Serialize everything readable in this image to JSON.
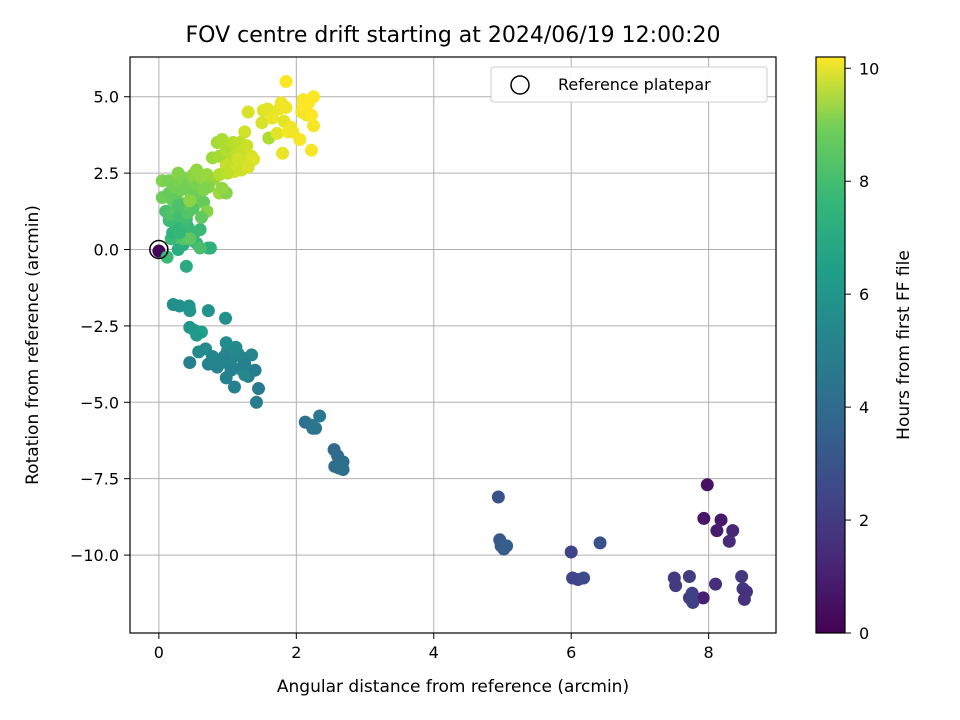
{
  "chart_data": {
    "type": "scatter",
    "title": "FOV centre drift starting at 2024/06/19 12:00:20",
    "xlabel": "Angular distance from reference (arcmin)",
    "ylabel": "Rotation from reference (arcmin)",
    "xlim": [
      -0.42,
      8.98
    ],
    "ylim": [
      -12.55,
      6.3
    ],
    "xticks": [
      0,
      2,
      4,
      6,
      8
    ],
    "xtick_labels": [
      "0",
      "2",
      "4",
      "6",
      "8"
    ],
    "yticks": [
      5.0,
      2.5,
      0.0,
      -2.5,
      -5.0,
      -7.5,
      -10.0
    ],
    "ytick_labels": [
      "5.0",
      "2.5",
      "0.0",
      "−2.5",
      "−5.0",
      "−7.5",
      "−10.0"
    ],
    "grid": true,
    "legend": {
      "label": "Reference platepar",
      "placement": "top-right"
    },
    "reference_point": {
      "x": 0.0,
      "y": 0.0
    },
    "colorbar": {
      "label": "Hours from first FF file",
      "range": [
        0,
        10.2
      ],
      "ticks": [
        0,
        2,
        4,
        6,
        8,
        10
      ],
      "tick_labels": [
        "0",
        "2",
        "4",
        "6",
        "8",
        "10"
      ],
      "colormap": "viridis"
    },
    "series": [
      {
        "points": [
          {
            "x": 0.0,
            "y": -0.05,
            "h": 0.1
          },
          {
            "x": 0.12,
            "y": -0.25,
            "h": 6.9
          },
          {
            "x": 7.98,
            "y": -7.7,
            "h": 0.5
          },
          {
            "x": 7.93,
            "y": -8.8,
            "h": 0.6
          },
          {
            "x": 8.18,
            "y": -8.85,
            "h": 0.7
          },
          {
            "x": 8.12,
            "y": -9.2,
            "h": 0.8
          },
          {
            "x": 8.35,
            "y": -9.2,
            "h": 1.1
          },
          {
            "x": 8.3,
            "y": -9.55,
            "h": 1.2
          },
          {
            "x": 7.92,
            "y": -11.4,
            "h": 0.9
          },
          {
            "x": 8.1,
            "y": -10.95,
            "h": 1.4
          },
          {
            "x": 8.48,
            "y": -10.7,
            "h": 1.7
          },
          {
            "x": 8.5,
            "y": -11.1,
            "h": 1.6
          },
          {
            "x": 8.55,
            "y": -11.2,
            "h": 1.5
          },
          {
            "x": 8.52,
            "y": -11.45,
            "h": 1.5
          },
          {
            "x": 7.5,
            "y": -10.75,
            "h": 1.8
          },
          {
            "x": 7.52,
            "y": -11.0,
            "h": 1.8
          },
          {
            "x": 7.72,
            "y": -10.7,
            "h": 1.9
          },
          {
            "x": 7.72,
            "y": -11.4,
            "h": 1.9
          },
          {
            "x": 7.76,
            "y": -11.25,
            "h": 2.0
          },
          {
            "x": 7.77,
            "y": -11.55,
            "h": 2.0
          },
          {
            "x": 6.0,
            "y": -9.9,
            "h": 2.1
          },
          {
            "x": 6.02,
            "y": -10.75,
            "h": 2.2
          },
          {
            "x": 6.1,
            "y": -10.8,
            "h": 2.2
          },
          {
            "x": 6.18,
            "y": -10.75,
            "h": 2.3
          },
          {
            "x": 6.42,
            "y": -9.6,
            "h": 2.6
          },
          {
            "x": 4.94,
            "y": -8.1,
            "h": 2.6
          },
          {
            "x": 4.96,
            "y": -9.5,
            "h": 2.8
          },
          {
            "x": 4.98,
            "y": -9.7,
            "h": 2.9
          },
          {
            "x": 5.02,
            "y": -9.8,
            "h": 3.0
          },
          {
            "x": 5.06,
            "y": -9.7,
            "h": 3.0
          },
          {
            "x": 2.55,
            "y": -6.55,
            "h": 3.4
          },
          {
            "x": 2.6,
            "y": -6.75,
            "h": 3.5
          },
          {
            "x": 2.68,
            "y": -6.95,
            "h": 3.6
          },
          {
            "x": 2.56,
            "y": -7.1,
            "h": 3.6
          },
          {
            "x": 2.62,
            "y": -7.15,
            "h": 3.7
          },
          {
            "x": 2.68,
            "y": -7.2,
            "h": 3.7
          },
          {
            "x": 2.13,
            "y": -5.65,
            "h": 3.8
          },
          {
            "x": 2.22,
            "y": -5.75,
            "h": 3.9
          },
          {
            "x": 2.28,
            "y": -5.85,
            "h": 4.0
          },
          {
            "x": 2.34,
            "y": -5.45,
            "h": 4.1
          },
          {
            "x": 2.24,
            "y": -5.85,
            "h": 3.95
          },
          {
            "x": 1.45,
            "y": -4.55,
            "h": 4.2
          },
          {
            "x": 1.42,
            "y": -5.0,
            "h": 4.3
          },
          {
            "x": 1.3,
            "y": -4.15,
            "h": 4.35
          },
          {
            "x": 1.1,
            "y": -4.5,
            "h": 4.45
          },
          {
            "x": 1.18,
            "y": -3.9,
            "h": 4.5
          },
          {
            "x": 0.98,
            "y": -4.2,
            "h": 4.5
          },
          {
            "x": 0.85,
            "y": -3.85,
            "h": 4.55
          },
          {
            "x": 1.05,
            "y": -3.6,
            "h": 4.6
          },
          {
            "x": 0.92,
            "y": -3.7,
            "h": 4.6
          },
          {
            "x": 1.22,
            "y": -3.55,
            "h": 4.7
          },
          {
            "x": 1.35,
            "y": -3.45,
            "h": 4.75
          },
          {
            "x": 1.15,
            "y": -3.4,
            "h": 4.75
          },
          {
            "x": 1.25,
            "y": -4.1,
            "h": 4.8
          },
          {
            "x": 1.0,
            "y": -3.3,
            "h": 4.85
          },
          {
            "x": 1.12,
            "y": -3.2,
            "h": 4.9
          },
          {
            "x": 0.98,
            "y": -3.05,
            "h": 4.95
          },
          {
            "x": 1.05,
            "y": -3.95,
            "h": 4.5
          },
          {
            "x": 0.72,
            "y": -3.75,
            "h": 4.55
          },
          {
            "x": 0.68,
            "y": -3.25,
            "h": 4.85
          },
          {
            "x": 0.58,
            "y": -3.35,
            "h": 4.9
          },
          {
            "x": 0.78,
            "y": -3.5,
            "h": 4.7
          },
          {
            "x": 0.85,
            "y": -3.65,
            "h": 4.65
          },
          {
            "x": 0.95,
            "y": -3.5,
            "h": 4.6
          },
          {
            "x": 1.4,
            "y": -3.95,
            "h": 4.4
          },
          {
            "x": 1.25,
            "y": -3.75,
            "h": 4.45
          },
          {
            "x": 0.45,
            "y": -3.7,
            "h": 4.4
          },
          {
            "x": 0.45,
            "y": -2.55,
            "h": 5.3
          },
          {
            "x": 0.52,
            "y": -2.65,
            "h": 5.4
          },
          {
            "x": 0.62,
            "y": -2.7,
            "h": 5.7
          },
          {
            "x": 0.55,
            "y": -2.8,
            "h": 5.5
          },
          {
            "x": 0.72,
            "y": -2.0,
            "h": 5.2
          },
          {
            "x": 0.97,
            "y": -2.25,
            "h": 5.1
          },
          {
            "x": 0.21,
            "y": -1.8,
            "h": 5.0
          },
          {
            "x": 0.3,
            "y": -1.85,
            "h": 5.1
          },
          {
            "x": 0.44,
            "y": -1.85,
            "h": 5.2
          },
          {
            "x": 0.45,
            "y": -2.0,
            "h": 5.3
          },
          {
            "x": 0.75,
            "y": 0.05,
            "h": 6.6
          },
          {
            "x": 0.72,
            "y": 0.05,
            "h": 6.5
          },
          {
            "x": 0.4,
            "y": -0.55,
            "h": 6.2
          },
          {
            "x": 0.28,
            "y": 0.0,
            "h": 6.3
          },
          {
            "x": 0.35,
            "y": 0.15,
            "h": 6.4
          },
          {
            "x": 0.48,
            "y": 0.3,
            "h": 6.7
          },
          {
            "x": 0.55,
            "y": 0.2,
            "h": 6.8
          },
          {
            "x": 0.6,
            "y": 0.05,
            "h": 7.2
          },
          {
            "x": 0.18,
            "y": 0.35,
            "h": 6.9
          },
          {
            "x": 0.2,
            "y": 0.55,
            "h": 6.6
          },
          {
            "x": 0.25,
            "y": 0.75,
            "h": 6.7
          },
          {
            "x": 0.15,
            "y": 0.95,
            "h": 7.0
          },
          {
            "x": 0.33,
            "y": 0.9,
            "h": 6.8
          },
          {
            "x": 0.42,
            "y": 0.75,
            "h": 6.9
          },
          {
            "x": 0.4,
            "y": 1.0,
            "h": 7.0
          },
          {
            "x": 0.52,
            "y": 0.55,
            "h": 6.9
          },
          {
            "x": 0.6,
            "y": 0.65,
            "h": 6.9
          },
          {
            "x": 0.35,
            "y": 0.35,
            "h": 7.4
          },
          {
            "x": 0.45,
            "y": 0.35,
            "h": 7.6
          },
          {
            "x": 0.3,
            "y": 0.55,
            "h": 6.75
          },
          {
            "x": 0.1,
            "y": 1.25,
            "h": 7.2
          },
          {
            "x": 0.18,
            "y": 1.15,
            "h": 7.3
          },
          {
            "x": 0.25,
            "y": 1.3,
            "h": 7.5
          },
          {
            "x": 0.3,
            "y": 1.1,
            "h": 7.1
          },
          {
            "x": 0.42,
            "y": 1.2,
            "h": 7.4
          },
          {
            "x": 0.5,
            "y": 1.35,
            "h": 7.5
          },
          {
            "x": 0.38,
            "y": 1.5,
            "h": 7.6
          },
          {
            "x": 0.2,
            "y": 1.6,
            "h": 7.8
          },
          {
            "x": 0.05,
            "y": 1.7,
            "h": 7.9
          },
          {
            "x": 0.15,
            "y": 1.85,
            "h": 7.8
          },
          {
            "x": 0.25,
            "y": 1.75,
            "h": 7.7
          },
          {
            "x": 0.32,
            "y": 1.95,
            "h": 8.0
          },
          {
            "x": 0.45,
            "y": 1.9,
            "h": 8.0
          },
          {
            "x": 0.55,
            "y": 1.75,
            "h": 7.9
          },
          {
            "x": 0.65,
            "y": 1.55,
            "h": 7.8
          },
          {
            "x": 0.7,
            "y": 1.25,
            "h": 8.3
          },
          {
            "x": 0.62,
            "y": 1.05,
            "h": 7.7
          },
          {
            "x": 0.28,
            "y": 1.45,
            "h": 7.3
          },
          {
            "x": 0.05,
            "y": 2.25,
            "h": 8.2
          },
          {
            "x": 0.15,
            "y": 2.25,
            "h": 8.1
          },
          {
            "x": 0.22,
            "y": 2.05,
            "h": 8.0
          },
          {
            "x": 0.28,
            "y": 2.25,
            "h": 8.1
          },
          {
            "x": 0.28,
            "y": 2.5,
            "h": 8.3
          },
          {
            "x": 0.35,
            "y": 2.35,
            "h": 8.2
          },
          {
            "x": 0.42,
            "y": 2.15,
            "h": 8.0
          },
          {
            "x": 0.5,
            "y": 2.3,
            "h": 8.2
          },
          {
            "x": 0.5,
            "y": 2.45,
            "h": 8.4
          },
          {
            "x": 0.58,
            "y": 2.1,
            "h": 8.1
          },
          {
            "x": 0.62,
            "y": 2.35,
            "h": 8.5
          },
          {
            "x": 0.7,
            "y": 2.45,
            "h": 8.6
          },
          {
            "x": 0.8,
            "y": 2.3,
            "h": 8.6
          },
          {
            "x": 0.72,
            "y": 2.05,
            "h": 8.3
          },
          {
            "x": 0.55,
            "y": 2.6,
            "h": 8.5
          },
          {
            "x": 0.45,
            "y": 1.6,
            "h": 8.4
          },
          {
            "x": 0.88,
            "y": 1.85,
            "h": 8.7
          },
          {
            "x": 0.98,
            "y": 1.85,
            "h": 8.3
          },
          {
            "x": 0.92,
            "y": 2.0,
            "h": 8.5
          },
          {
            "x": 0.65,
            "y": 1.95,
            "h": 8.2
          },
          {
            "x": 0.78,
            "y": 3.0,
            "h": 8.7
          },
          {
            "x": 0.88,
            "y": 3.05,
            "h": 8.8
          },
          {
            "x": 0.85,
            "y": 3.5,
            "h": 8.8
          },
          {
            "x": 0.92,
            "y": 3.6,
            "h": 8.9
          },
          {
            "x": 0.98,
            "y": 3.25,
            "h": 9.0
          },
          {
            "x": 1.02,
            "y": 3.4,
            "h": 8.9
          },
          {
            "x": 1.08,
            "y": 3.5,
            "h": 9.1
          },
          {
            "x": 1.12,
            "y": 3.1,
            "h": 9.2
          },
          {
            "x": 1.18,
            "y": 3.5,
            "h": 9.2
          },
          {
            "x": 1.22,
            "y": 3.2,
            "h": 9.3
          },
          {
            "x": 1.28,
            "y": 3.4,
            "h": 9.4
          },
          {
            "x": 1.05,
            "y": 2.9,
            "h": 9.1
          },
          {
            "x": 0.98,
            "y": 2.75,
            "h": 9.3
          },
          {
            "x": 1.15,
            "y": 2.95,
            "h": 9.5
          },
          {
            "x": 1.22,
            "y": 2.75,
            "h": 9.5
          },
          {
            "x": 1.3,
            "y": 2.85,
            "h": 9.4
          },
          {
            "x": 1.35,
            "y": 3.05,
            "h": 9.6
          },
          {
            "x": 1.25,
            "y": 3.85,
            "h": 9.5
          },
          {
            "x": 1.3,
            "y": 4.5,
            "h": 9.6
          },
          {
            "x": 1.38,
            "y": 2.95,
            "h": 9.7
          },
          {
            "x": 1.1,
            "y": 2.55,
            "h": 9.5
          },
          {
            "x": 1.2,
            "y": 2.6,
            "h": 9.4
          },
          {
            "x": 1.3,
            "y": 2.7,
            "h": 9.6
          },
          {
            "x": 0.88,
            "y": 2.45,
            "h": 9.0
          },
          {
            "x": 1.0,
            "y": 2.5,
            "h": 9.2
          },
          {
            "x": 1.52,
            "y": 4.55,
            "h": 9.7
          },
          {
            "x": 1.58,
            "y": 4.6,
            "h": 9.8
          },
          {
            "x": 1.5,
            "y": 4.15,
            "h": 9.6
          },
          {
            "x": 1.6,
            "y": 3.65,
            "h": 8.9
          },
          {
            "x": 1.65,
            "y": 4.3,
            "h": 9.9
          },
          {
            "x": 1.72,
            "y": 3.8,
            "h": 9.8
          },
          {
            "x": 1.75,
            "y": 4.6,
            "h": 9.9
          },
          {
            "x": 1.78,
            "y": 4.8,
            "h": 10.0
          },
          {
            "x": 1.8,
            "y": 3.15,
            "h": 9.9
          },
          {
            "x": 1.82,
            "y": 4.2,
            "h": 9.8
          },
          {
            "x": 1.85,
            "y": 4.65,
            "h": 10.0
          },
          {
            "x": 1.88,
            "y": 3.85,
            "h": 10.1
          },
          {
            "x": 1.85,
            "y": 5.5,
            "h": 10.2
          },
          {
            "x": 1.92,
            "y": 4.0,
            "h": 10.0
          },
          {
            "x": 1.95,
            "y": 3.85,
            "h": 10.0
          },
          {
            "x": 2.05,
            "y": 3.6,
            "h": 10.1
          },
          {
            "x": 2.08,
            "y": 4.5,
            "h": 10.0
          },
          {
            "x": 2.1,
            "y": 4.9,
            "h": 10.1
          },
          {
            "x": 2.1,
            "y": 4.7,
            "h": 10.2
          },
          {
            "x": 2.15,
            "y": 4.4,
            "h": 10.0
          },
          {
            "x": 2.18,
            "y": 4.8,
            "h": 10.2
          },
          {
            "x": 2.22,
            "y": 3.25,
            "h": 10.1
          },
          {
            "x": 2.25,
            "y": 4.05,
            "h": 10.1
          },
          {
            "x": 2.25,
            "y": 5.0,
            "h": 10.2
          },
          {
            "x": 2.22,
            "y": 4.4,
            "h": 10.2
          }
        ]
      }
    ]
  }
}
